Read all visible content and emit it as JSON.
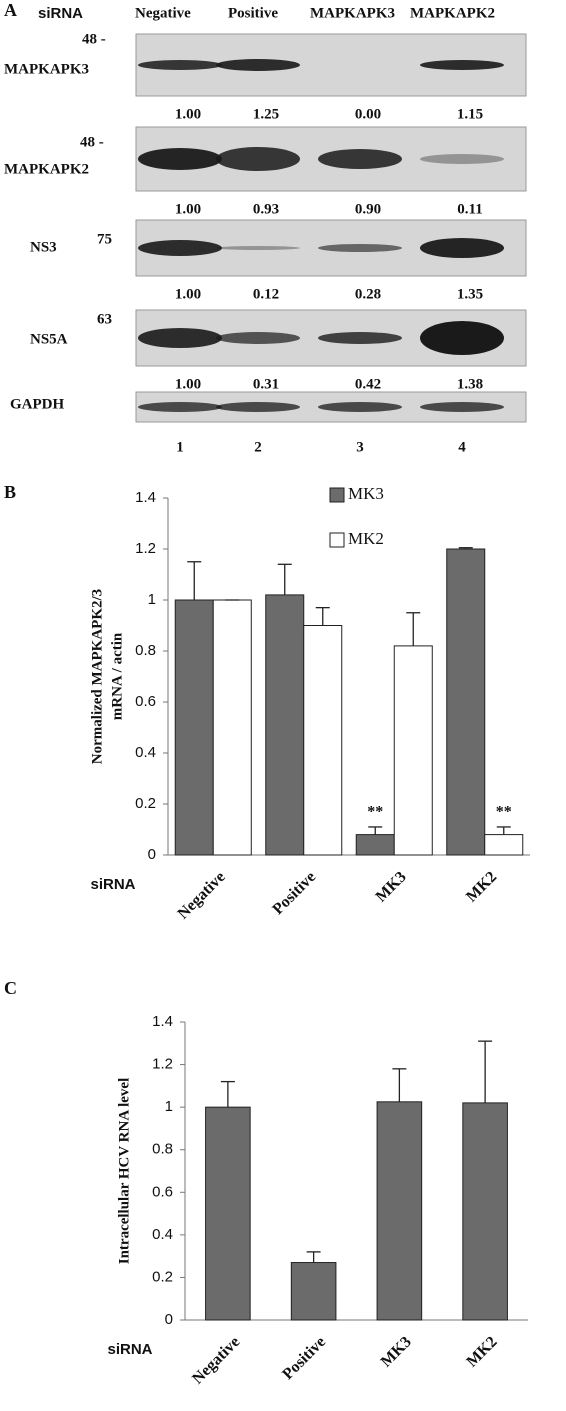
{
  "western_blot": {
    "panel_label": "A",
    "header": {
      "label": "siRNA",
      "lanes": [
        "Negative",
        "Positive",
        "MAPKAPK3",
        "MAPKAPK2"
      ]
    },
    "rows": [
      {
        "marker": "48 -",
        "label": "MAPKAPK3",
        "quantification": [
          "1.00",
          "1.25",
          "0.00",
          "1.15"
        ]
      },
      {
        "marker": "48 -",
        "label": "MAPKAPK2",
        "quantification": [
          "1.00",
          "0.93",
          "0.90",
          "0.11"
        ]
      },
      {
        "marker": "75",
        "label": "NS3",
        "quantification": [
          "1.00",
          "0.12",
          "0.28",
          "1.35"
        ]
      },
      {
        "marker": "63",
        "label": "NS5A",
        "quantification": [
          "1.00",
          "0.31",
          "0.42",
          "1.38"
        ]
      },
      {
        "label": "GAPDH"
      }
    ],
    "lane_numbers": [
      "1",
      "2",
      "3",
      "4"
    ]
  },
  "chart_data": [
    {
      "type": "bar",
      "panel_label": "B",
      "ylabel": [
        "Normalized MAPKAPK2/3",
        "mRNA / actin"
      ],
      "xlabel": "siRNA",
      "categories": [
        "Negative",
        "Positive",
        "MK3",
        "MK2"
      ],
      "series": [
        {
          "name": "MK3",
          "color": "#6b6b6b",
          "values": [
            1.0,
            1.02,
            0.08,
            1.2
          ],
          "errors": [
            0.15,
            0.12,
            0.03,
            0.005
          ],
          "annotations": [
            null,
            null,
            "**",
            null
          ]
        },
        {
          "name": "MK2",
          "color": "#ffffff",
          "values": [
            1.0,
            0.9,
            0.82,
            0.08
          ],
          "errors": [
            0,
            0.07,
            0.13,
            0.03
          ],
          "annotations": [
            null,
            null,
            null,
            "**"
          ]
        }
      ],
      "ylim": [
        0,
        1.4
      ],
      "yticks": [
        0,
        0.2,
        0.4,
        0.6,
        0.8,
        1,
        1.2,
        1.4
      ],
      "legend": "top"
    },
    {
      "type": "bar",
      "panel_label": "C",
      "ylabel": [
        "Intracellular HCV RNA level"
      ],
      "xlabel": "siRNA",
      "categories": [
        "Negative",
        "Positive",
        "MK3",
        "MK2"
      ],
      "series": [
        {
          "color": "#6b6b6b",
          "values": [
            1.0,
            0.27,
            1.025,
            1.02
          ],
          "errors": [
            0.12,
            0.05,
            0.155,
            0.29
          ]
        }
      ],
      "ylim": [
        0,
        1.4
      ],
      "yticks": [
        0,
        0.2,
        0.4,
        0.6,
        0.8,
        1,
        1.2,
        1.4
      ]
    }
  ]
}
